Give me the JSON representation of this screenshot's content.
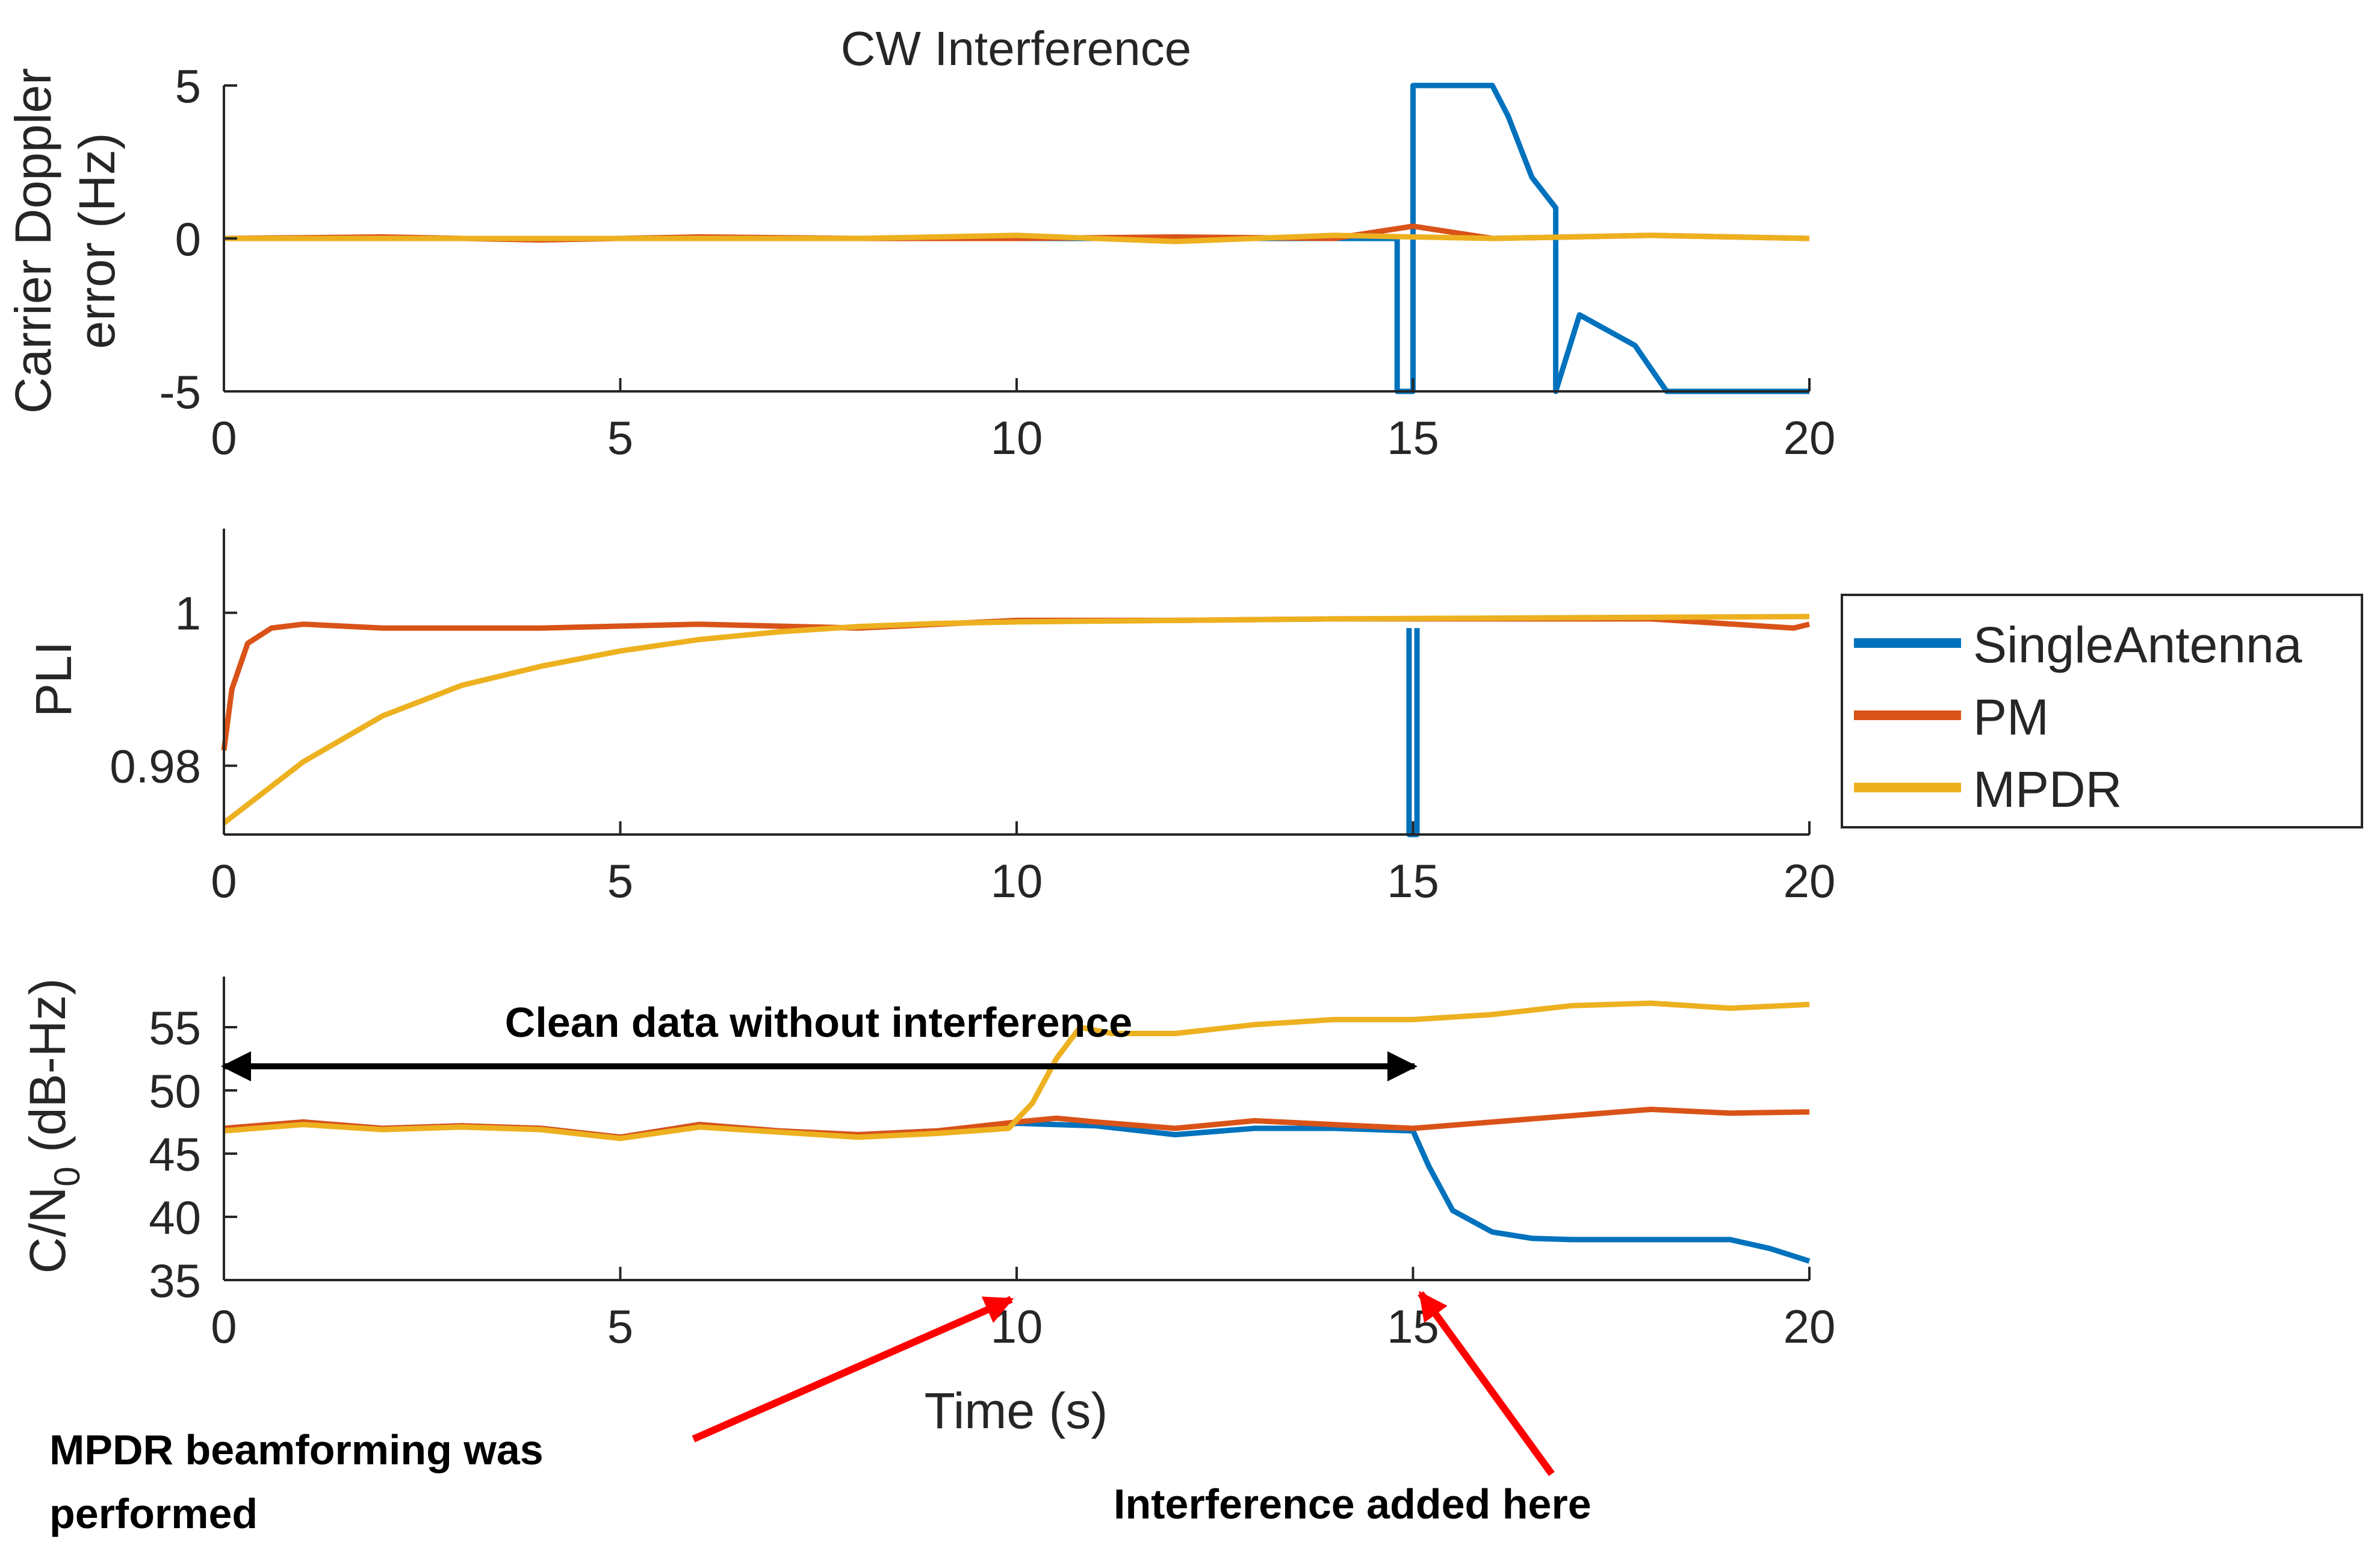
{
  "chart_data": [
    {
      "type": "line",
      "title": "CW Interference",
      "ylabel": "Carrier Doppler error (Hz)",
      "ylabel_lines": [
        "Carrier Doppler",
        "error (Hz)"
      ],
      "xlabel": "",
      "xlim": [
        0,
        20
      ],
      "ylim": [
        -5,
        5
      ],
      "xticks": [
        0,
        5,
        10,
        15,
        20
      ],
      "yticks": [
        -5,
        0,
        5
      ],
      "series": [
        {
          "name": "SingleAntenna",
          "color": "#0072BD",
          "x": [
            0,
            14.8,
            14.8,
            15.0,
            15.0,
            16.0,
            16.2,
            16.5,
            16.8,
            16.8,
            17.1,
            17.8,
            18.2,
            20
          ],
          "y": [
            0,
            0,
            -5,
            -5,
            5,
            5,
            4,
            2,
            1,
            -5,
            -2.5,
            -3.5,
            -5,
            -5
          ]
        },
        {
          "name": "PM",
          "color": "#D95319",
          "x": [
            0,
            2,
            4,
            6,
            8,
            10,
            12,
            14,
            15,
            16,
            18,
            20
          ],
          "y": [
            0,
            0.05,
            -0.05,
            0.05,
            0,
            0,
            0.05,
            0,
            0.4,
            0,
            0.1,
            0
          ]
        },
        {
          "name": "MPDR",
          "color": "#EDB120",
          "x": [
            0,
            2,
            4,
            6,
            8,
            10,
            12,
            14,
            16,
            18,
            20
          ],
          "y": [
            0,
            0,
            0,
            0,
            0,
            0.1,
            -0.1,
            0.1,
            0,
            0.1,
            0
          ]
        }
      ]
    },
    {
      "type": "line",
      "title": "",
      "ylabel": "PLI",
      "xlabel": "",
      "xlim": [
        0,
        20
      ],
      "ylim": [
        0.971,
        1.011
      ],
      "xticks": [
        0,
        5,
        10,
        15,
        20
      ],
      "yticks": [
        0.98,
        1
      ],
      "ytick_labels": [
        "0.98",
        "1"
      ],
      "series": [
        {
          "name": "SingleAntenna",
          "color": "#0072BD",
          "x": [
            14.95,
            14.95,
            15.05,
            15.05
          ],
          "y": [
            0.998,
            0.971,
            0.971,
            0.998
          ]
        },
        {
          "name": "PM",
          "color": "#D95319",
          "x": [
            0,
            0.1,
            0.3,
            0.6,
            1.0,
            2,
            4,
            6,
            8,
            10,
            12,
            14,
            16,
            18,
            19.8,
            20
          ],
          "y": [
            0.982,
            0.99,
            0.996,
            0.998,
            0.9985,
            0.998,
            0.998,
            0.9985,
            0.998,
            0.999,
            0.999,
            0.9992,
            0.9992,
            0.9992,
            0.998,
            0.9985
          ]
        },
        {
          "name": "MPDR",
          "color": "#EDB120",
          "x": [
            0,
            0.5,
            1,
            2,
            3,
            4,
            5,
            6,
            7,
            8,
            9,
            10,
            12,
            14,
            16,
            18,
            20
          ],
          "y": [
            0.9725,
            0.9765,
            0.9805,
            0.9865,
            0.9905,
            0.993,
            0.995,
            0.9965,
            0.9975,
            0.9982,
            0.9986,
            0.9988,
            0.999,
            0.9992,
            0.9993,
            0.9994,
            0.9995
          ]
        }
      ]
    },
    {
      "type": "line",
      "title": "",
      "ylabel": "C/N0 (dB-Hz)",
      "ylabel_parts": {
        "main": "C/N",
        "sub": "0",
        "rest": " (dB-Hz)"
      },
      "xlabel": "Time (s)",
      "xlim": [
        0,
        20
      ],
      "ylim": [
        35,
        59
      ],
      "xticks": [
        0,
        5,
        10,
        15,
        20
      ],
      "yticks": [
        35,
        40,
        45,
        50,
        55
      ],
      "series": [
        {
          "name": "SingleAntenna",
          "color": "#0072BD",
          "x": [
            0,
            1,
            2,
            3,
            4,
            5,
            6,
            7,
            8,
            9,
            10,
            11,
            12,
            13,
            14,
            15,
            15.2,
            15.5,
            16,
            16.5,
            17,
            18,
            19,
            19.5,
            20
          ],
          "y": [
            47,
            47.5,
            47,
            47.2,
            47,
            46.3,
            47.3,
            46.8,
            46.5,
            46.8,
            47.4,
            47.2,
            46.5,
            47,
            47,
            46.8,
            44,
            40.5,
            38.8,
            38.3,
            38.2,
            38.2,
            38.2,
            37.5,
            36.5
          ]
        },
        {
          "name": "PM",
          "color": "#D95319",
          "x": [
            0,
            1,
            2,
            3,
            4,
            5,
            6,
            7,
            8,
            9,
            10,
            10.5,
            11,
            12,
            13,
            14,
            15,
            16,
            17,
            18,
            19,
            20
          ],
          "y": [
            47,
            47.5,
            47,
            47.2,
            47,
            46.3,
            47.3,
            46.8,
            46.5,
            46.8,
            47.5,
            47.8,
            47.5,
            47,
            47.6,
            47.3,
            47,
            47.5,
            48,
            48.5,
            48.2,
            48.3
          ]
        },
        {
          "name": "MPDR",
          "color": "#EDB120",
          "x": [
            0,
            1,
            2,
            3,
            4,
            5,
            6,
            7,
            8,
            9,
            9.9,
            10.2,
            10.5,
            10.8,
            11.2,
            12,
            13,
            14,
            15,
            16,
            17,
            18,
            19,
            20
          ],
          "y": [
            46.8,
            47.3,
            46.9,
            47.1,
            46.9,
            46.2,
            47.1,
            46.7,
            46.3,
            46.6,
            47,
            49,
            52.5,
            55,
            54.5,
            54.5,
            55.2,
            55.6,
            55.6,
            56,
            56.7,
            56.9,
            56.5,
            56.8
          ]
        }
      ],
      "annotations": {
        "clean_label": "Clean data without interference",
        "mpdr_label_line1": "MPDR beamforming was",
        "mpdr_label_line2": "performed",
        "interference_label": "Interference added here"
      }
    }
  ],
  "legend": {
    "placement": "right",
    "entries": [
      {
        "label": "SingleAntenna",
        "color": "#0072BD"
      },
      {
        "label": "PM",
        "color": "#D95319"
      },
      {
        "label": "MPDR",
        "color": "#EDB120"
      }
    ]
  }
}
